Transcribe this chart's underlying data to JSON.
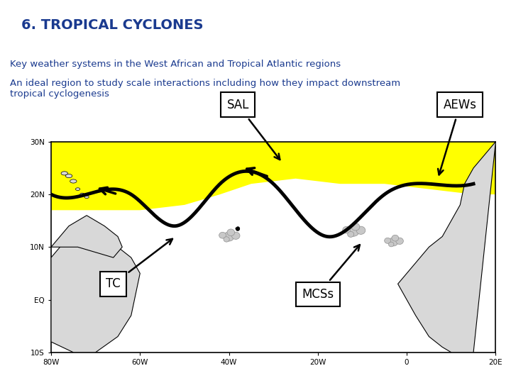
{
  "title": "6. TROPICAL CYCLONES",
  "title_bg_color": "#add8f0",
  "title_text_color": "#1a3a8f",
  "subtitle1": "Key weather systems in the West African and Tropical Atlantic regions",
  "subtitle2": "An ideal region to study scale interactions including how they impact downstream\ntropical cyclogenesis",
  "subtitle_color": "#1a3a8f",
  "bg_color": "#ffffff",
  "label_SAL": "SAL",
  "label_AEWs": "AEWs",
  "label_TC": "TC",
  "label_MCSs": "MCSs"
}
